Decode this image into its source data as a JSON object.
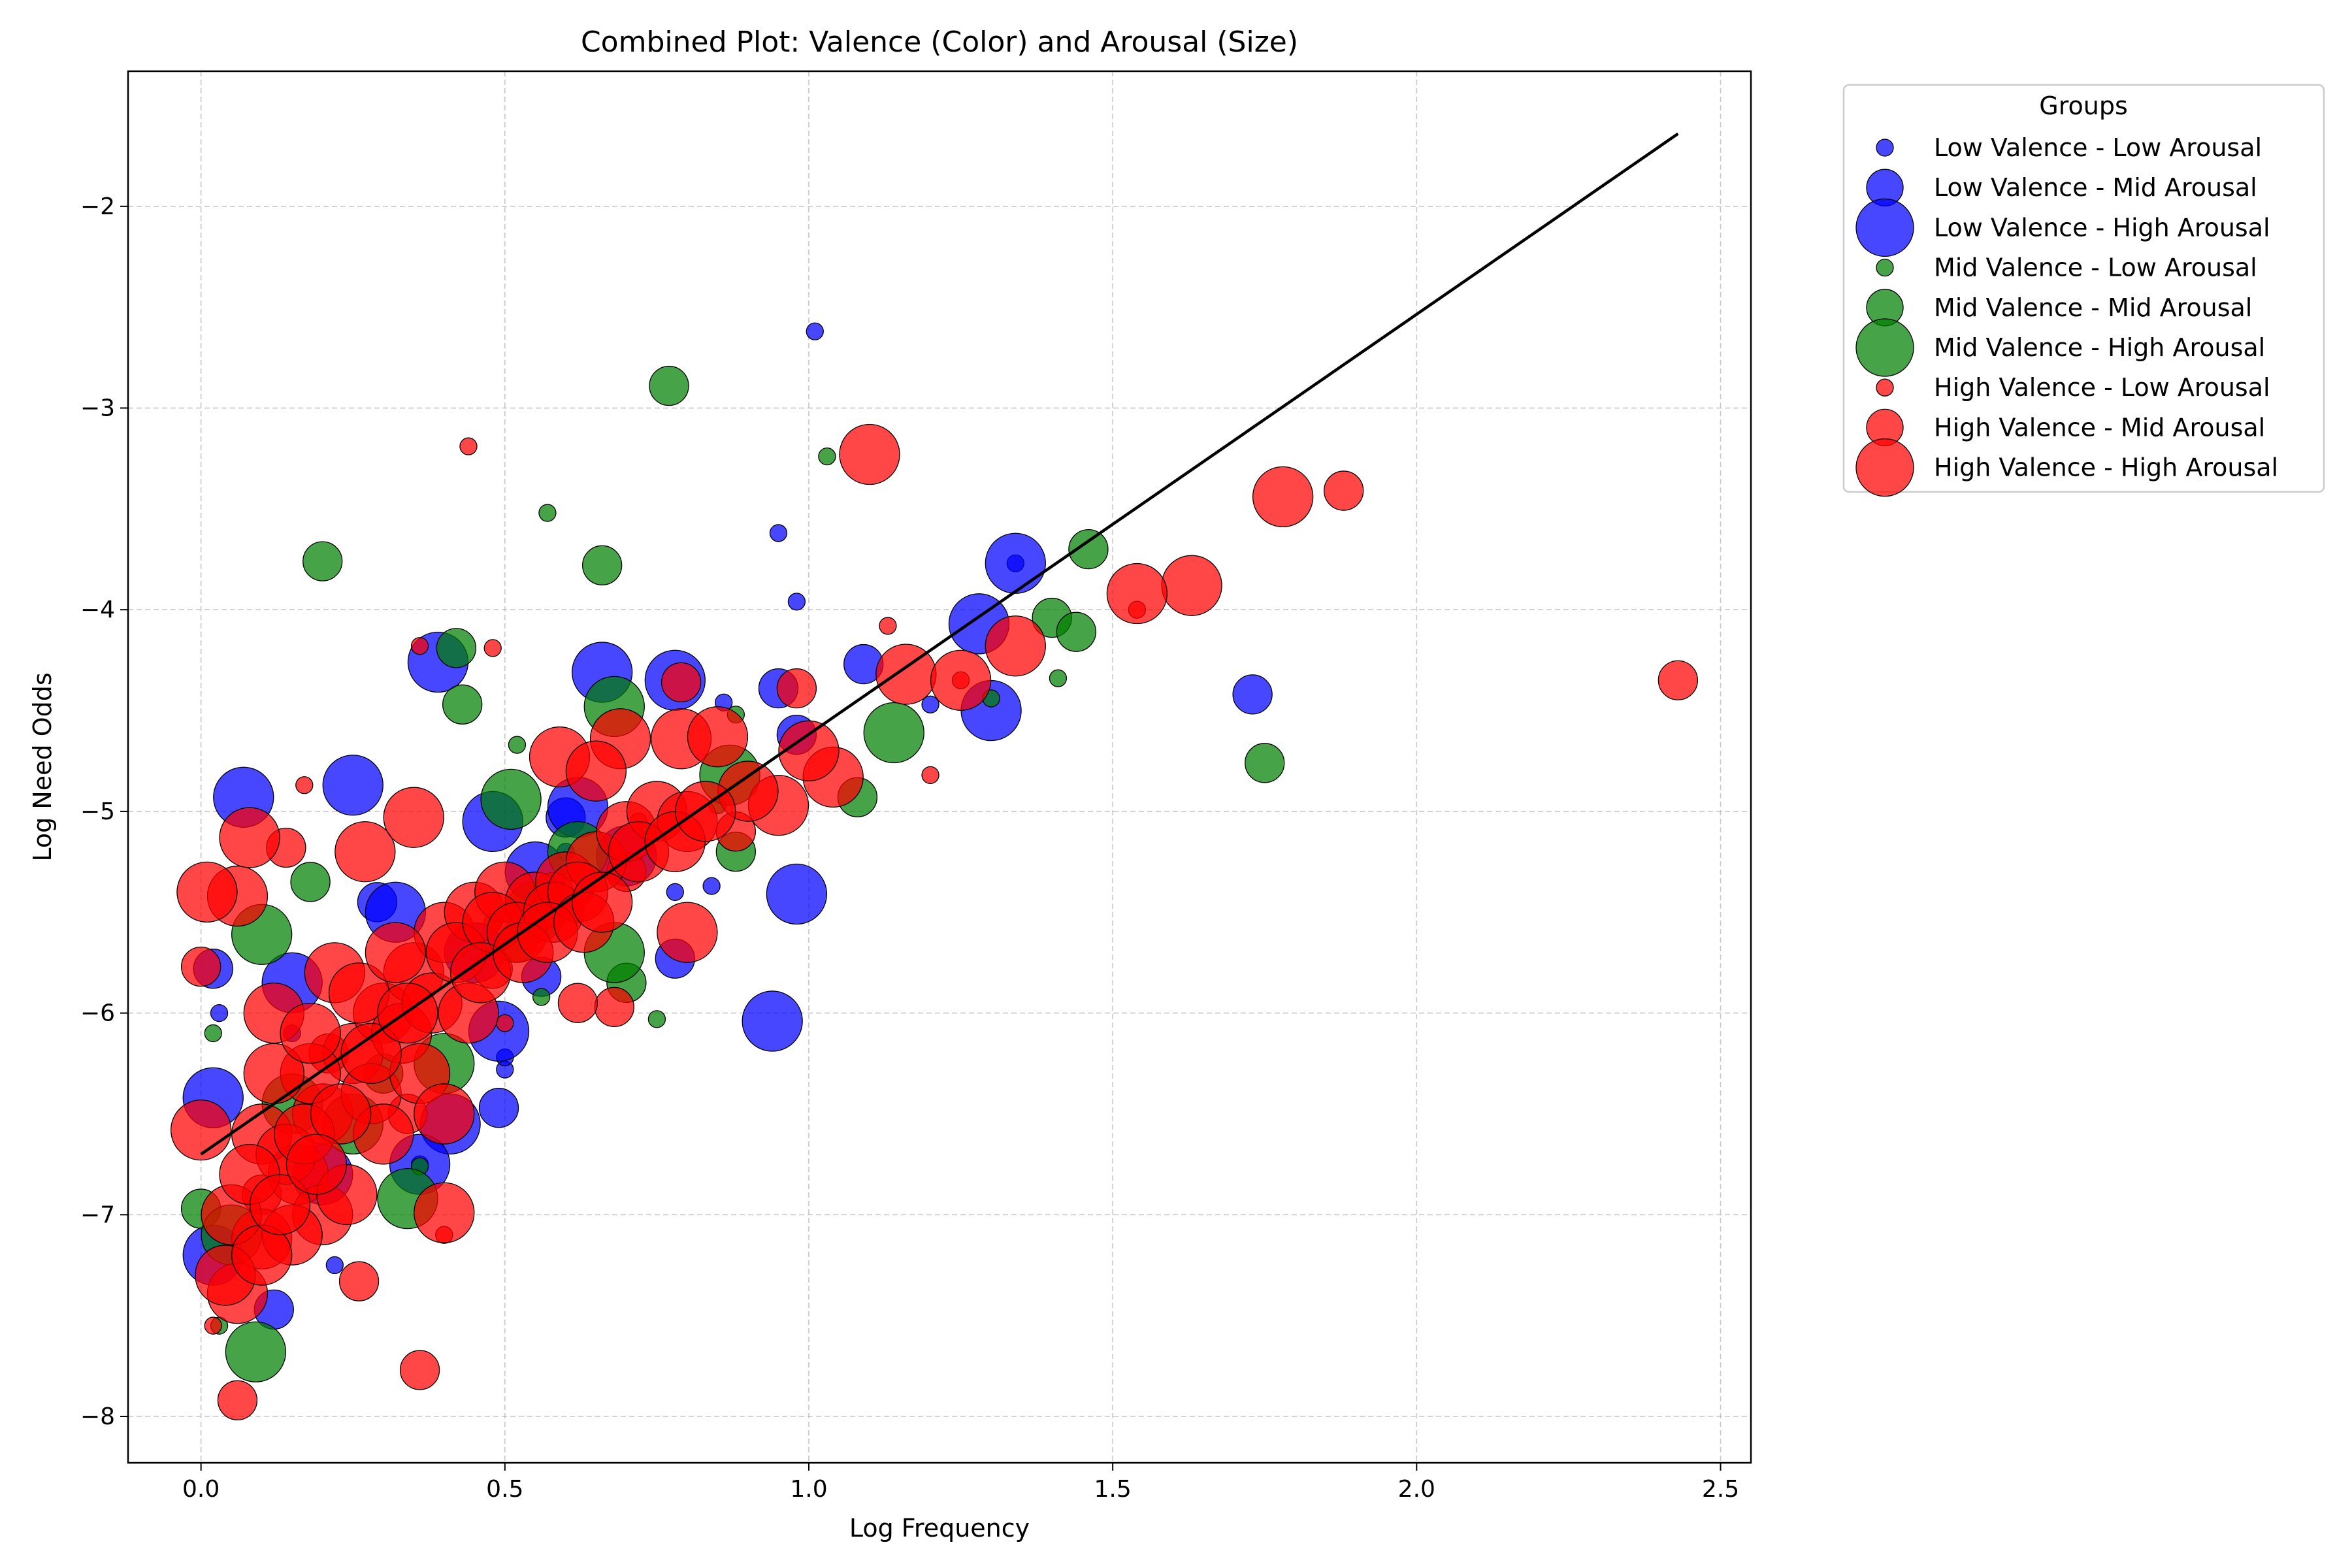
{
  "chart_data": {
    "type": "scatter",
    "title": "Combined Plot: Valence (Color) and Arousal (Size)",
    "xlabel": "Log Frequency",
    "ylabel": "Log Need Odds",
    "xlim": [
      -0.12,
      2.55
    ],
    "ylim": [
      -8.23,
      -1.33
    ],
    "x_ticks": [
      0.0,
      0.5,
      1.0,
      1.5,
      2.0,
      2.5
    ],
    "x_tick_labels": [
      "0.0",
      "0.5",
      "1.0",
      "1.5",
      "2.0",
      "2.5"
    ],
    "y_ticks": [
      -2,
      -3,
      -4,
      -5,
      -6,
      -7,
      -8
    ],
    "y_tick_labels": [
      "−2",
      "−3",
      "−4",
      "−5",
      "−6",
      "−7",
      "−8"
    ],
    "grid": true,
    "legend": {
      "title": "Groups",
      "placement": "outside-right",
      "entries": [
        {
          "label": "Low Valence - Low Arousal",
          "color": "#0000ff",
          "size": "low"
        },
        {
          "label": "Low Valence - Mid Arousal",
          "color": "#0000ff",
          "size": "mid"
        },
        {
          "label": "Low Valence - High Arousal",
          "color": "#0000ff",
          "size": "high"
        },
        {
          "label": "Mid Valence - Low Arousal",
          "color": "#008000",
          "size": "low"
        },
        {
          "label": "Mid Valence - Mid Arousal",
          "color": "#008000",
          "size": "mid"
        },
        {
          "label": "Mid Valence - High Arousal",
          "color": "#008000",
          "size": "high"
        },
        {
          "label": "High Valence - Low Arousal",
          "color": "#ff0000",
          "size": "low"
        },
        {
          "label": "High Valence - Mid Arousal",
          "color": "#ff0000",
          "size": "mid"
        },
        {
          "label": "High Valence - High Arousal",
          "color": "#ff0000",
          "size": "high"
        }
      ]
    },
    "trend_line": {
      "x": [
        0.0,
        2.43
      ],
      "y": [
        -6.7,
        -1.64
      ],
      "color": "#000000"
    },
    "colors": {
      "Low Valence": "#0000ff",
      "Mid Valence": "#008000",
      "High Valence": "#ff0000"
    },
    "series": [
      {
        "name": "Low Valence - Low Arousal",
        "valence": "Low Valence",
        "arousal": "low",
        "points": [
          [
            1.01,
            -2.62
          ],
          [
            0.95,
            -3.62
          ],
          [
            1.34,
            -3.77
          ],
          [
            0.98,
            -3.96
          ],
          [
            0.78,
            -5.4
          ],
          [
            0.84,
            -5.37
          ],
          [
            0.22,
            -7.25
          ],
          [
            0.5,
            -6.28
          ],
          [
            0.03,
            -6.0
          ],
          [
            0.5,
            -6.22
          ],
          [
            1.2,
            -4.47
          ],
          [
            0.36,
            -6.75
          ],
          [
            0.86,
            -4.46
          ],
          [
            0.6,
            -5.2
          ],
          [
            0.15,
            -6.1
          ]
        ]
      },
      {
        "name": "Low Valence - Mid Arousal",
        "valence": "Low Valence",
        "arousal": "mid",
        "points": [
          [
            1.73,
            -4.42
          ],
          [
            1.09,
            -4.27
          ],
          [
            0.95,
            -4.39
          ],
          [
            0.49,
            -6.47
          ],
          [
            0.56,
            -5.82
          ],
          [
            0.02,
            -5.78
          ],
          [
            0.12,
            -7.47
          ],
          [
            0.78,
            -5.73
          ],
          [
            0.29,
            -5.45
          ],
          [
            0.98,
            -4.62
          ],
          [
            0.6,
            -5.03
          ]
        ]
      },
      {
        "name": "Low Valence - High Arousal",
        "valence": "Low Valence",
        "arousal": "high",
        "points": [
          [
            1.34,
            -3.77
          ],
          [
            1.28,
            -4.07
          ],
          [
            1.3,
            -4.5
          ],
          [
            0.07,
            -4.93
          ],
          [
            0.25,
            -4.87
          ],
          [
            0.39,
            -4.26
          ],
          [
            0.66,
            -4.31
          ],
          [
            0.78,
            -4.35
          ],
          [
            0.98,
            -5.41
          ],
          [
            0.94,
            -6.04
          ],
          [
            0.48,
            -5.05
          ],
          [
            0.49,
            -6.09
          ],
          [
            0.41,
            -6.55
          ],
          [
            0.02,
            -6.42
          ],
          [
            0.02,
            -7.2
          ],
          [
            0.36,
            -6.75
          ],
          [
            0.55,
            -5.3
          ],
          [
            0.62,
            -4.98
          ],
          [
            0.15,
            -5.85
          ],
          [
            0.32,
            -5.5
          ],
          [
            0.7,
            -5.22
          ],
          [
            0.2,
            -6.8
          ],
          [
            0.45,
            -5.7
          ]
        ]
      },
      {
        "name": "Mid Valence - Low Arousal",
        "valence": "Mid Valence",
        "arousal": "low",
        "points": [
          [
            1.03,
            -3.24
          ],
          [
            0.57,
            -3.52
          ],
          [
            0.52,
            -4.67
          ],
          [
            1.41,
            -4.34
          ],
          [
            1.3,
            -4.44
          ],
          [
            0.75,
            -6.03
          ],
          [
            0.56,
            -5.92
          ],
          [
            0.36,
            -6.76
          ],
          [
            0.02,
            -6.1
          ],
          [
            0.03,
            -7.55
          ],
          [
            0.85,
            -4.97
          ],
          [
            0.48,
            -5.55
          ],
          [
            0.88,
            -4.52
          ]
        ]
      },
      {
        "name": "Mid Valence - Mid Arousal",
        "valence": "Mid Valence",
        "arousal": "mid",
        "points": [
          [
            0.77,
            -2.89
          ],
          [
            0.66,
            -3.78
          ],
          [
            0.2,
            -3.76
          ],
          [
            1.46,
            -3.7
          ],
          [
            1.4,
            -4.04
          ],
          [
            1.44,
            -4.11
          ],
          [
            0.42,
            -4.19
          ],
          [
            0.43,
            -4.47
          ],
          [
            1.75,
            -4.76
          ],
          [
            1.08,
            -4.93
          ],
          [
            0.88,
            -5.2
          ],
          [
            0.0,
            -6.97
          ],
          [
            0.52,
            -5.65
          ],
          [
            0.3,
            -6.3
          ],
          [
            0.18,
            -5.35
          ],
          [
            0.7,
            -5.85
          ]
        ]
      },
      {
        "name": "Mid Valence - High Arousal",
        "valence": "Mid Valence",
        "arousal": "high",
        "points": [
          [
            1.14,
            -4.61
          ],
          [
            0.68,
            -4.48
          ],
          [
            0.51,
            -4.94
          ],
          [
            0.09,
            -7.68
          ],
          [
            0.1,
            -5.61
          ],
          [
            0.34,
            -6.92
          ],
          [
            0.68,
            -5.7
          ],
          [
            0.05,
            -7.1
          ],
          [
            0.25,
            -6.55
          ],
          [
            0.62,
            -5.2
          ],
          [
            0.87,
            -4.82
          ],
          [
            0.4,
            -6.25
          ],
          [
            0.15,
            -6.45
          ],
          [
            0.55,
            -5.5
          ]
        ]
      },
      {
        "name": "High Valence - Low Arousal",
        "valence": "High Valence",
        "arousal": "low",
        "points": [
          [
            0.44,
            -3.19
          ],
          [
            1.13,
            -4.08
          ],
          [
            1.54,
            -4.0
          ],
          [
            0.48,
            -4.19
          ],
          [
            0.36,
            -4.18
          ],
          [
            1.2,
            -4.82
          ],
          [
            0.17,
            -4.87
          ],
          [
            1.25,
            -4.35
          ],
          [
            0.4,
            -7.1
          ],
          [
            0.02,
            -7.55
          ],
          [
            0.5,
            -6.05
          ],
          [
            0.72,
            -5.05
          ]
        ]
      },
      {
        "name": "High Valence - Mid Arousal",
        "valence": "High Valence",
        "arousal": "mid",
        "points": [
          [
            1.88,
            -3.41
          ],
          [
            2.43,
            -4.35
          ],
          [
            0.36,
            -7.77
          ],
          [
            0.06,
            -7.92
          ],
          [
            0.26,
            -7.33
          ],
          [
            0.0,
            -5.77
          ],
          [
            0.68,
            -5.97
          ],
          [
            0.62,
            -5.95
          ],
          [
            0.98,
            -4.39
          ],
          [
            0.14,
            -5.18
          ],
          [
            0.79,
            -4.36
          ],
          [
            0.58,
            -5.4
          ],
          [
            0.21,
            -6.2
          ],
          [
            0.34,
            -6.5
          ],
          [
            0.88,
            -5.1
          ],
          [
            0.48,
            -5.78
          ],
          [
            0.1,
            -6.9
          ],
          [
            0.7,
            -5.3
          ]
        ]
      },
      {
        "name": "High Valence - High Arousal",
        "valence": "High Valence",
        "arousal": "high",
        "points": [
          [
            1.1,
            -3.23
          ],
          [
            1.78,
            -3.44
          ],
          [
            1.63,
            -3.88
          ],
          [
            1.54,
            -3.92
          ],
          [
            1.16,
            -4.32
          ],
          [
            1.34,
            -4.18
          ],
          [
            1.25,
            -4.35
          ],
          [
            0.06,
            -5.42
          ],
          [
            0.08,
            -5.13
          ],
          [
            0.27,
            -5.2
          ],
          [
            0.35,
            -5.03
          ],
          [
            0.59,
            -4.73
          ],
          [
            0.69,
            -4.64
          ],
          [
            0.79,
            -4.64
          ],
          [
            0.85,
            -4.63
          ],
          [
            0.95,
            -4.97
          ],
          [
            1.04,
            -4.83
          ],
          [
            0.8,
            -5.6
          ],
          [
            0.4,
            -6.99
          ],
          [
            0.0,
            -6.58
          ],
          [
            0.06,
            -7.39
          ],
          [
            0.1,
            -7.12
          ],
          [
            0.16,
            -6.8
          ],
          [
            0.2,
            -6.5
          ],
          [
            0.25,
            -6.2
          ],
          [
            0.3,
            -6.0
          ],
          [
            0.35,
            -5.8
          ],
          [
            0.4,
            -5.6
          ],
          [
            0.45,
            -5.5
          ],
          [
            0.5,
            -5.4
          ],
          [
            0.55,
            -5.45
          ],
          [
            0.6,
            -5.35
          ],
          [
            0.65,
            -5.25
          ],
          [
            0.7,
            -5.1
          ],
          [
            0.75,
            -5.0
          ],
          [
            0.8,
            -5.05
          ],
          [
            0.9,
            -4.9
          ],
          [
            1.0,
            -4.7
          ],
          [
            0.12,
            -6.0
          ],
          [
            0.18,
            -6.3
          ],
          [
            0.22,
            -5.8
          ],
          [
            0.28,
            -6.4
          ],
          [
            0.33,
            -6.1
          ],
          [
            0.38,
            -5.95
          ],
          [
            0.42,
            -5.7
          ],
          [
            0.48,
            -5.55
          ],
          [
            0.52,
            -5.6
          ],
          [
            0.58,
            -5.5
          ],
          [
            0.62,
            -5.4
          ],
          [
            0.05,
            -7.0
          ],
          [
            0.1,
            -6.6
          ],
          [
            0.14,
            -6.7
          ],
          [
            0.2,
            -7.0
          ],
          [
            0.24,
            -6.9
          ],
          [
            0.3,
            -6.6
          ],
          [
            0.15,
            -7.1
          ],
          [
            0.08,
            -6.8
          ],
          [
            0.04,
            -7.3
          ],
          [
            0.12,
            -6.3
          ],
          [
            0.18,
            -6.1
          ],
          [
            0.26,
            -5.9
          ],
          [
            0.32,
            -5.7
          ],
          [
            0.36,
            -6.3
          ],
          [
            0.44,
            -6.0
          ],
          [
            0.46,
            -5.8
          ],
          [
            0.53,
            -5.7
          ],
          [
            0.57,
            -5.6
          ],
          [
            0.63,
            -5.55
          ],
          [
            0.66,
            -5.45
          ],
          [
            0.72,
            -5.2
          ],
          [
            0.78,
            -5.15
          ],
          [
            0.83,
            -5.0
          ],
          [
            0.17,
            -6.6
          ],
          [
            0.23,
            -6.5
          ],
          [
            0.28,
            -6.2
          ],
          [
            0.34,
            -6.0
          ],
          [
            0.4,
            -6.5
          ],
          [
            0.1,
            -7.2
          ],
          [
            0.13,
            -6.95
          ],
          [
            0.19,
            -6.75
          ],
          [
            0.01,
            -5.4
          ],
          [
            0.65,
            -4.8
          ]
        ]
      }
    ]
  }
}
